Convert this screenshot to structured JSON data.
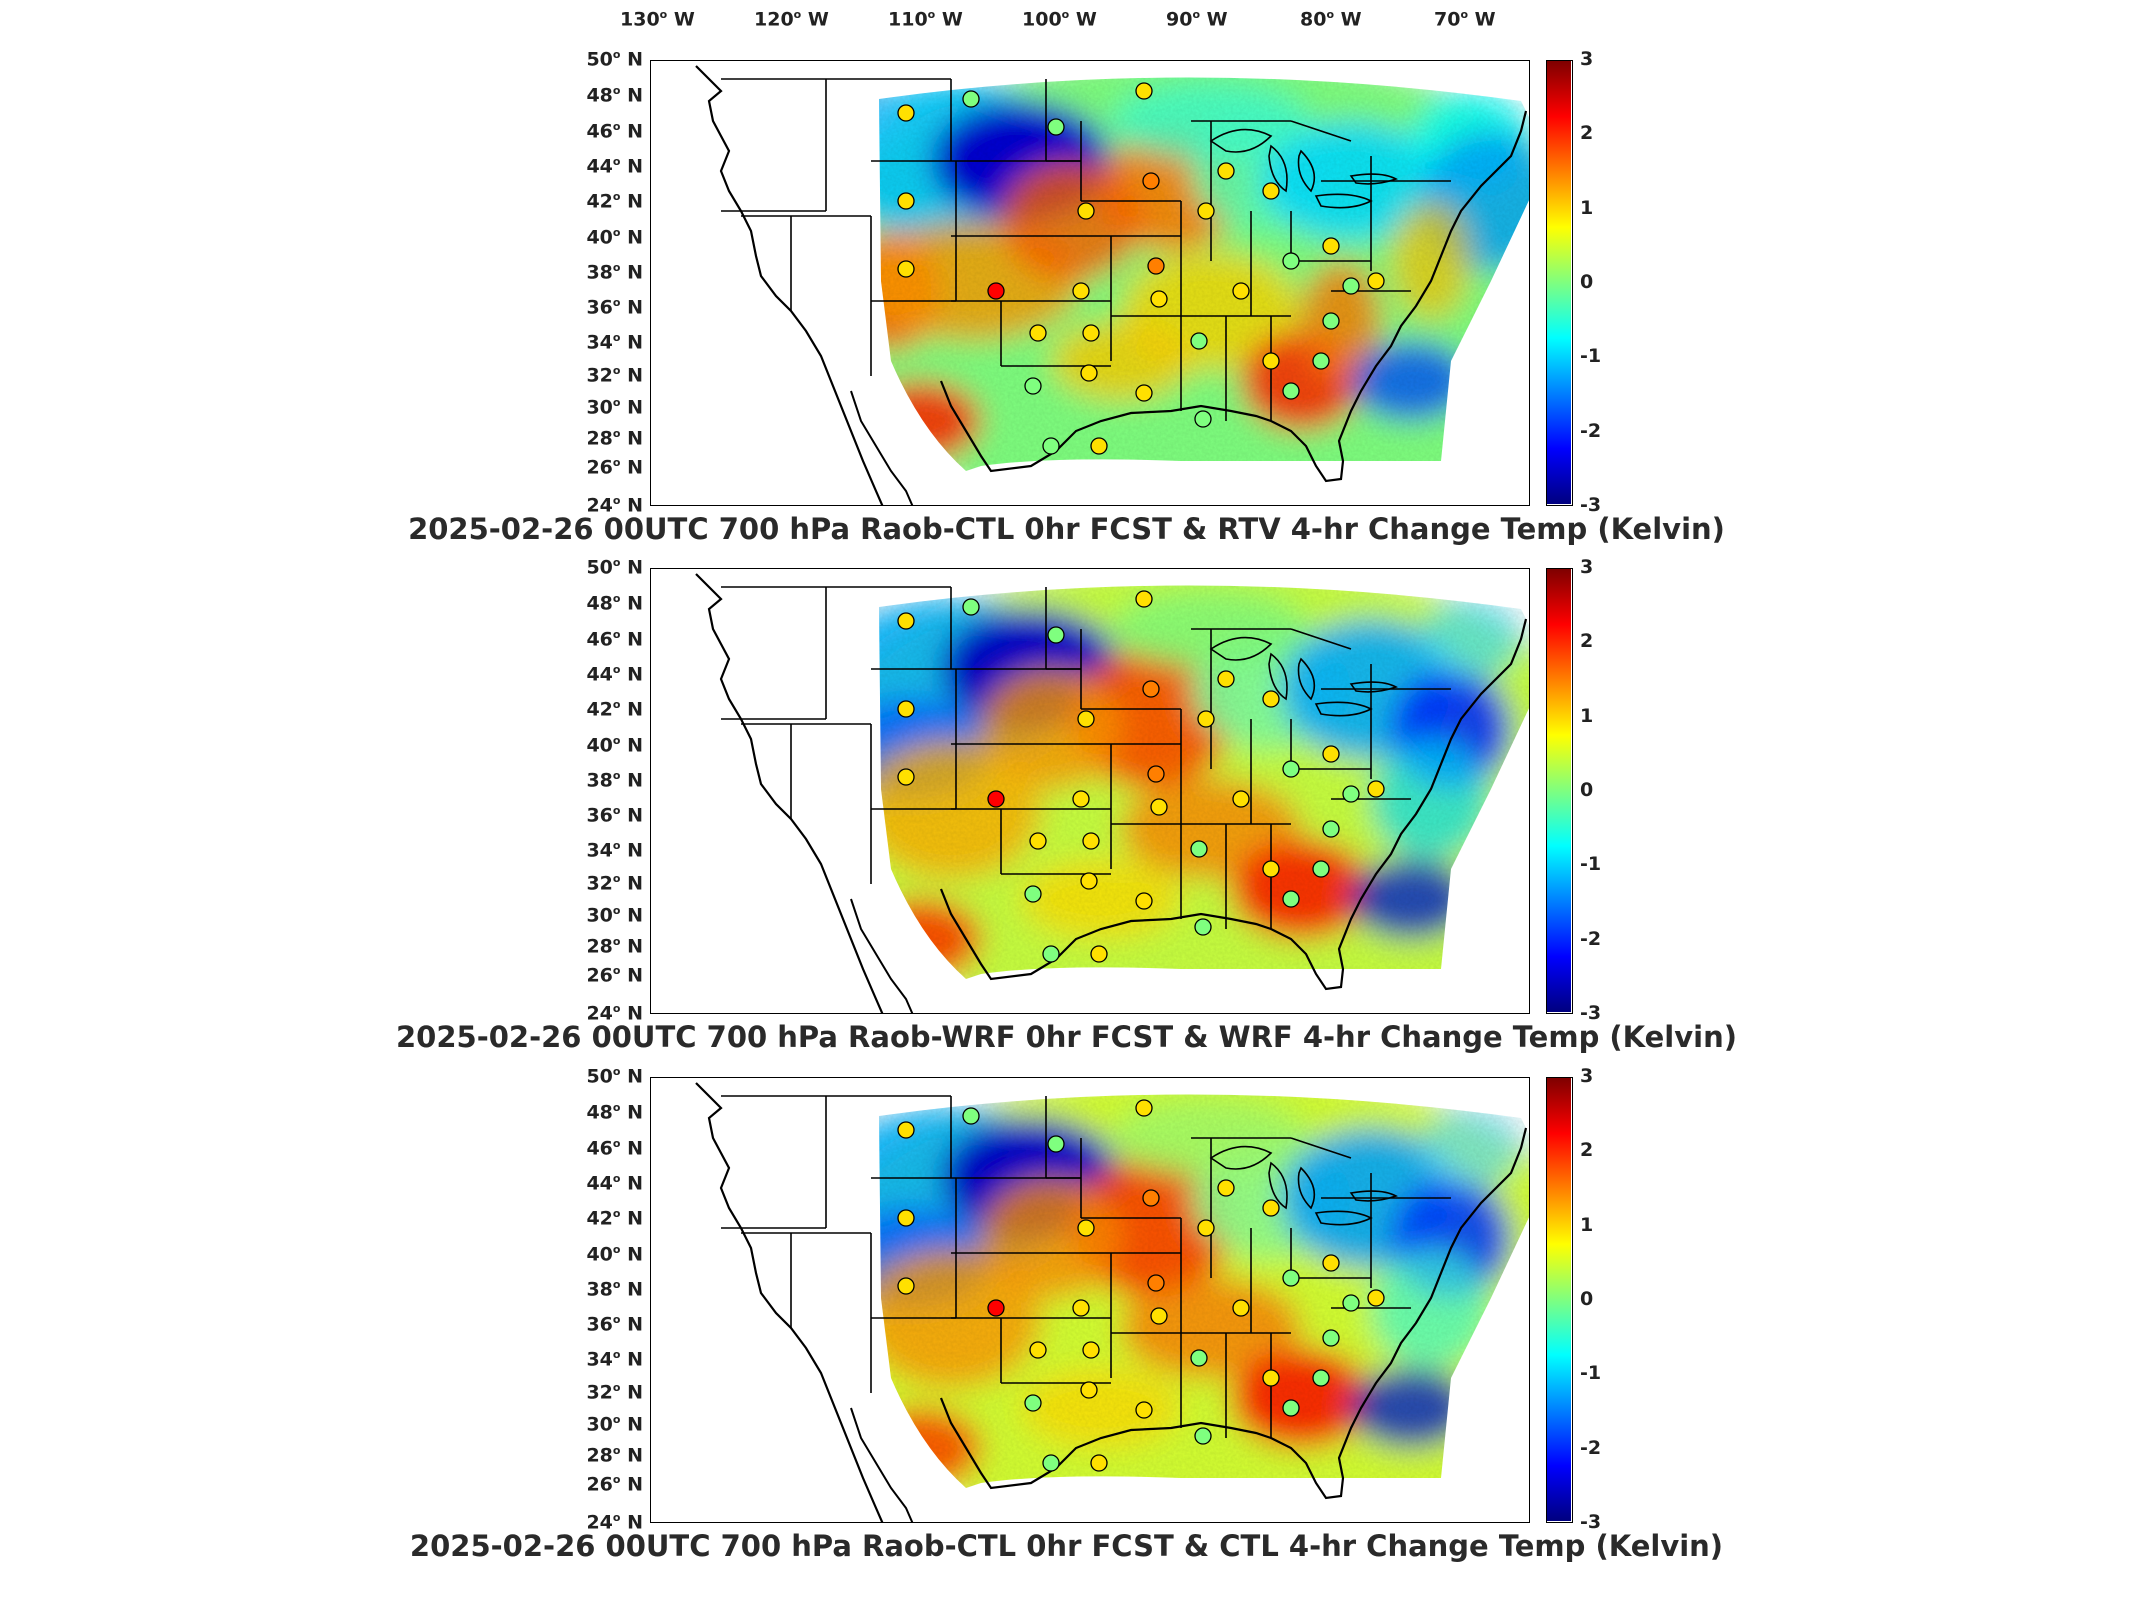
{
  "lon_labels": [
    {
      "deg": "130",
      "hem": "W"
    },
    {
      "deg": "120",
      "hem": "W"
    },
    {
      "deg": "110",
      "hem": "W"
    },
    {
      "deg": "100",
      "hem": "W"
    },
    {
      "deg": "90",
      "hem": "W"
    },
    {
      "deg": "80",
      "hem": "W"
    },
    {
      "deg": "70",
      "hem": "W"
    }
  ],
  "lat_labels": [
    {
      "deg": "50",
      "hem": "N"
    },
    {
      "deg": "48",
      "hem": "N"
    },
    {
      "deg": "46",
      "hem": "N"
    },
    {
      "deg": "44",
      "hem": "N"
    },
    {
      "deg": "42",
      "hem": "N"
    },
    {
      "deg": "40",
      "hem": "N"
    },
    {
      "deg": "38",
      "hem": "N"
    },
    {
      "deg": "36",
      "hem": "N"
    },
    {
      "deg": "34",
      "hem": "N"
    },
    {
      "deg": "32",
      "hem": "N"
    },
    {
      "deg": "30",
      "hem": "N"
    },
    {
      "deg": "28",
      "hem": "N"
    },
    {
      "deg": "26",
      "hem": "N"
    },
    {
      "deg": "24",
      "hem": "N"
    }
  ],
  "colorbar": {
    "ticks": [
      "3",
      "2",
      "1",
      "0",
      "-1",
      "-2",
      "-3"
    ],
    "min": -3,
    "max": 3,
    "colormap": "jet",
    "colors": [
      "#00007f",
      "#0000ff",
      "#007fff",
      "#00ffff",
      "#7fff7f",
      "#ffff00",
      "#ff7f00",
      "#ff0000",
      "#7f0000"
    ]
  },
  "panels": [
    {
      "title": "2025-02-26 00UTC 700 hPa Raob-CTL 0hr FCST & RTV 4-hr Change Temp (Kelvin)"
    },
    {
      "title": "2025-02-26 00UTC 700 hPa Raob-WRF 0hr FCST & WRF 4-hr Change Temp (Kelvin)"
    },
    {
      "title": "2025-02-26 00UTC 700 hPa Raob-CTL 0hr FCST & CTL 4-hr Change Temp (Kelvin)"
    }
  ]
}
